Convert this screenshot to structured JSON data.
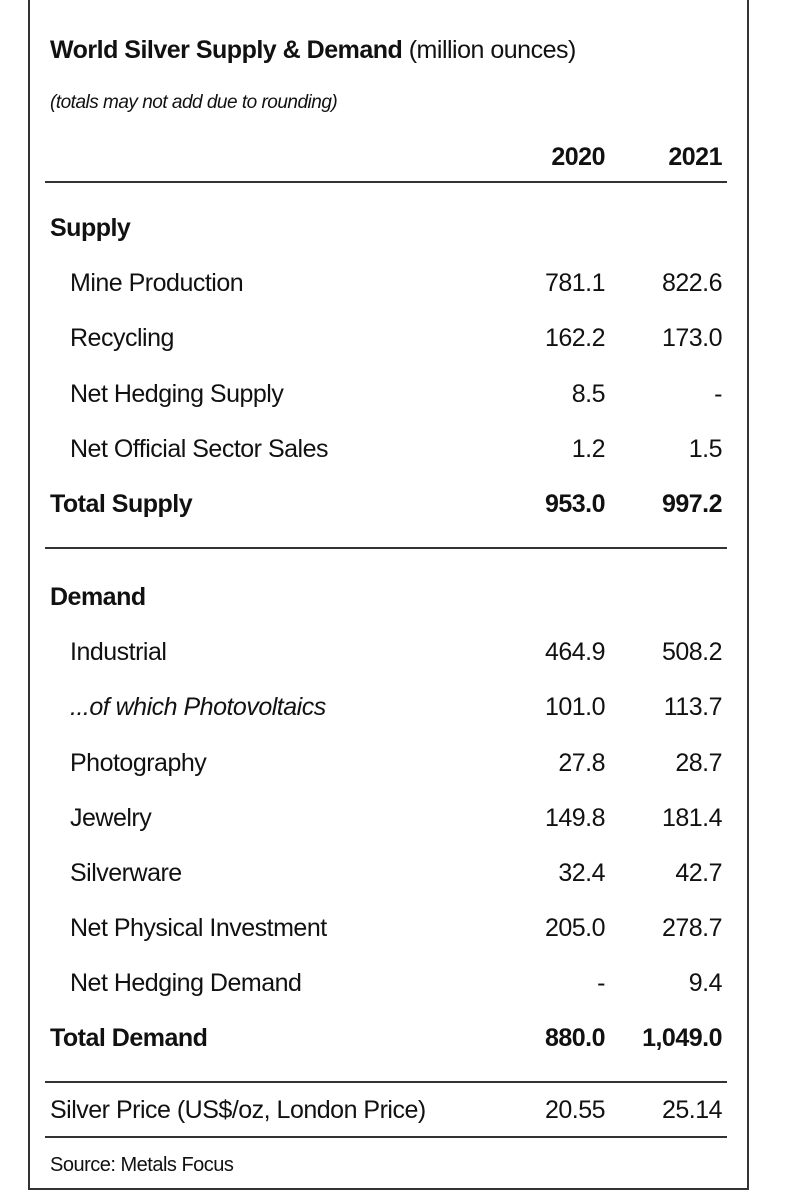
{
  "header": {
    "title": "World Silver Supply & Demand",
    "unit": "(million ounces)",
    "note": "(totals may not add due to rounding)"
  },
  "columns": [
    "2020",
    "2021"
  ],
  "sections": [
    {
      "heading": "Supply",
      "rows": [
        {
          "label": "Mine Production",
          "values": [
            "781.1",
            "822.6"
          ]
        },
        {
          "label": "Recycling",
          "values": [
            "162.2",
            "173.0"
          ]
        },
        {
          "label": "Net Hedging Supply",
          "values": [
            "8.5",
            "-"
          ]
        },
        {
          "label": "Net Official Sector Sales",
          "values": [
            "1.2",
            "1.5"
          ]
        }
      ],
      "total": {
        "label": "Total Supply",
        "values": [
          "953.0",
          "997.2"
        ]
      }
    },
    {
      "heading": "Demand",
      "rows": [
        {
          "label": "Industrial",
          "values": [
            "464.9",
            "508.2"
          ]
        },
        {
          "label": "...of which Photovoltaics",
          "values": [
            "101.0",
            "113.7"
          ]
        },
        {
          "label": "Photography",
          "values": [
            "27.8",
            "28.7"
          ]
        },
        {
          "label": "Jewelry",
          "values": [
            "149.8",
            "181.4"
          ]
        },
        {
          "label": "Silverware",
          "values": [
            "32.4",
            "42.7"
          ]
        },
        {
          "label": "Net Physical Investment",
          "values": [
            "205.0",
            "278.7"
          ]
        },
        {
          "label": "Net Hedging Demand",
          "values": [
            "-",
            "9.4"
          ]
        }
      ],
      "total": {
        "label": "Total Demand",
        "values": [
          "880.0",
          "1,049.0"
        ]
      }
    }
  ],
  "price": {
    "label": "Silver Price (US$/oz, London Price)",
    "values": [
      "20.55",
      "25.14"
    ]
  },
  "source": "Source: Metals Focus"
}
